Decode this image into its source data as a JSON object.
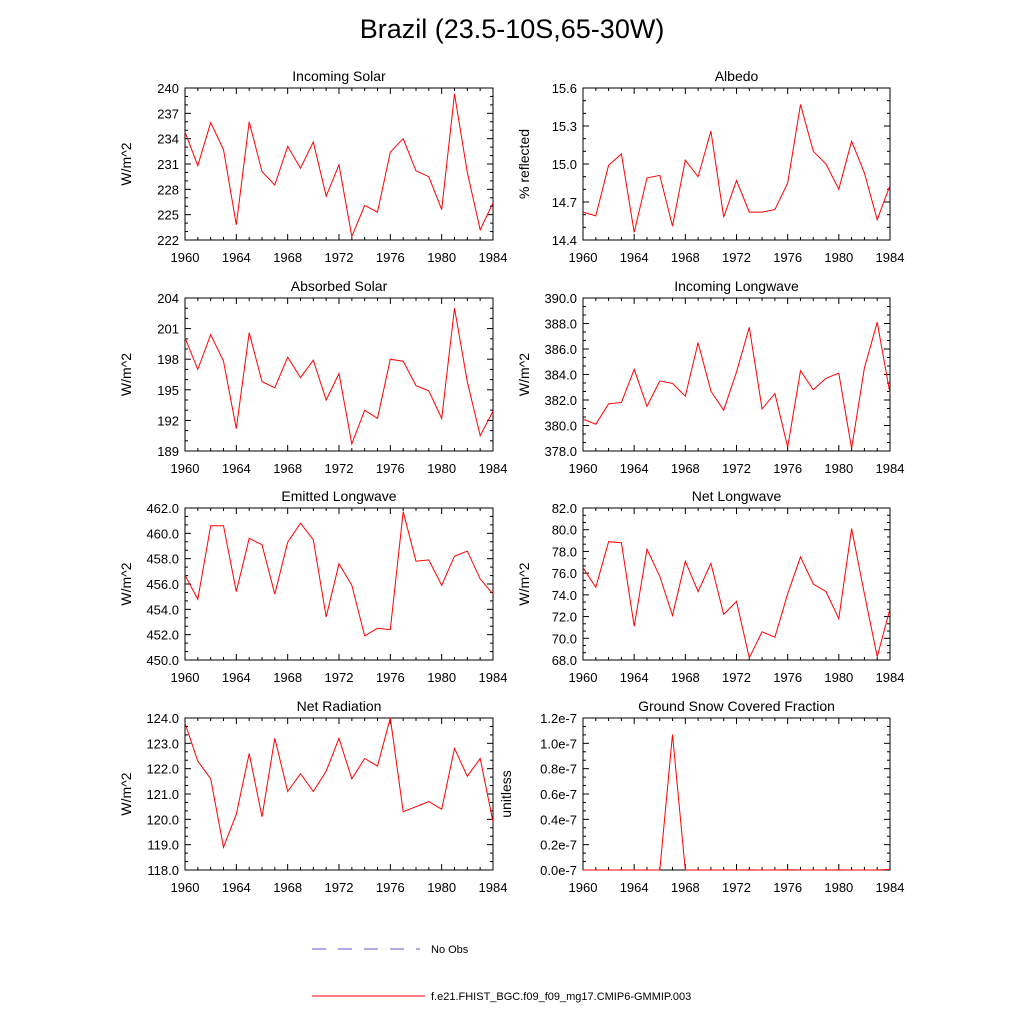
{
  "title": "Brazil (23.5-10S,65-30W)",
  "colors": {
    "model": "#ff0000",
    "obs": "#5a5acd",
    "axis": "#000000"
  },
  "legend": {
    "obs_label": "No Obs",
    "model_label": "f.e21.FHIST_BGC.f09_f09_mg17.CMIP6-GMMIP.003"
  },
  "chart_data": [
    {
      "type": "line",
      "title": "Incoming Solar",
      "ylabel": "W/m^2",
      "xlabel": "",
      "xlim": [
        1960,
        1984
      ],
      "ylim": [
        222,
        240
      ],
      "xticks": [
        "1960",
        "1964",
        "1968",
        "1972",
        "1976",
        "1980",
        "1984"
      ],
      "yticks": [
        "222",
        "225",
        "228",
        "231",
        "234",
        "237",
        "240"
      ],
      "x": [
        1960,
        1961,
        1962,
        1963,
        1964,
        1965,
        1966,
        1967,
        1968,
        1969,
        1970,
        1971,
        1972,
        1973,
        1974,
        1975,
        1976,
        1977,
        1978,
        1979,
        1980,
        1981,
        1982,
        1983,
        1984
      ],
      "values": [
        234.8,
        230.8,
        235.9,
        232.7,
        223.8,
        236.0,
        230.1,
        228.5,
        233.1,
        230.5,
        233.6,
        227.2,
        230.9,
        222.4,
        226.1,
        225.3,
        232.4,
        234.0,
        230.2,
        229.5,
        225.6,
        239.3,
        230.0,
        223.2,
        226.4
      ]
    },
    {
      "type": "line",
      "title": "Albedo",
      "ylabel": "% reflected",
      "xlabel": "",
      "xlim": [
        1960,
        1984
      ],
      "ylim": [
        14.4,
        15.6
      ],
      "xticks": [
        "1960",
        "1964",
        "1968",
        "1972",
        "1976",
        "1980",
        "1984"
      ],
      "yticks": [
        "14.4",
        "14.7",
        "15.0",
        "15.3",
        "15.6"
      ],
      "x": [
        1960,
        1961,
        1962,
        1963,
        1964,
        1965,
        1966,
        1967,
        1968,
        1969,
        1970,
        1971,
        1972,
        1973,
        1974,
        1975,
        1976,
        1977,
        1978,
        1979,
        1980,
        1981,
        1982,
        1983,
        1984
      ],
      "values": [
        14.62,
        14.59,
        14.99,
        15.08,
        14.46,
        14.89,
        14.91,
        14.51,
        15.03,
        14.9,
        15.26,
        14.58,
        14.87,
        14.62,
        14.62,
        14.64,
        14.85,
        15.47,
        15.1,
        15.0,
        14.8,
        15.18,
        14.93,
        14.56,
        14.83
      ]
    },
    {
      "type": "line",
      "title": "Absorbed Solar",
      "ylabel": "W/m^2",
      "xlabel": "",
      "xlim": [
        1960,
        1984
      ],
      "ylim": [
        189,
        204
      ],
      "xticks": [
        "1960",
        "1964",
        "1968",
        "1972",
        "1976",
        "1980",
        "1984"
      ],
      "yticks": [
        "189",
        "192",
        "195",
        "198",
        "201",
        "204"
      ],
      "x": [
        1960,
        1961,
        1962,
        1963,
        1964,
        1965,
        1966,
        1967,
        1968,
        1969,
        1970,
        1971,
        1972,
        1973,
        1974,
        1975,
        1976,
        1977,
        1978,
        1979,
        1980,
        1981,
        1982,
        1983,
        1984
      ],
      "values": [
        200.1,
        197.0,
        200.4,
        197.8,
        191.2,
        200.6,
        195.8,
        195.2,
        198.2,
        196.2,
        197.9,
        194.0,
        196.6,
        189.7,
        193.0,
        192.2,
        198.0,
        197.8,
        195.4,
        194.9,
        192.2,
        203.0,
        195.8,
        190.5,
        192.9
      ]
    },
    {
      "type": "line",
      "title": "Incoming Longwave",
      "ylabel": "W/m^2",
      "xlabel": "",
      "xlim": [
        1960,
        1984
      ],
      "ylim": [
        378.0,
        390.0
      ],
      "xticks": [
        "1960",
        "1964",
        "1968",
        "1972",
        "1976",
        "1980",
        "1984"
      ],
      "yticks": [
        "378.0",
        "380.0",
        "382.0",
        "384.0",
        "386.0",
        "388.0",
        "390.0"
      ],
      "x": [
        1960,
        1961,
        1962,
        1963,
        1964,
        1965,
        1966,
        1967,
        1968,
        1969,
        1970,
        1971,
        1972,
        1973,
        1974,
        1975,
        1976,
        1977,
        1978,
        1979,
        1980,
        1981,
        1982,
        1983,
        1984
      ],
      "values": [
        380.5,
        380.1,
        381.7,
        381.8,
        384.4,
        381.5,
        383.5,
        383.3,
        382.3,
        386.5,
        382.7,
        381.2,
        384.2,
        387.7,
        381.3,
        382.5,
        378.3,
        384.3,
        382.8,
        383.7,
        384.1,
        378.2,
        384.5,
        388.1,
        382.5
      ]
    },
    {
      "type": "line",
      "title": "Emitted Longwave",
      "ylabel": "W/m^2",
      "xlabel": "",
      "xlim": [
        1960,
        1984
      ],
      "ylim": [
        450.0,
        462.0
      ],
      "xticks": [
        "1960",
        "1964",
        "1968",
        "1972",
        "1976",
        "1980",
        "1984"
      ],
      "yticks": [
        "450.0",
        "452.0",
        "454.0",
        "456.0",
        "458.0",
        "460.0",
        "462.0"
      ],
      "x": [
        1960,
        1961,
        1962,
        1963,
        1964,
        1965,
        1966,
        1967,
        1968,
        1969,
        1970,
        1971,
        1972,
        1973,
        1974,
        1975,
        1976,
        1977,
        1978,
        1979,
        1980,
        1981,
        1982,
        1983,
        1984
      ],
      "values": [
        456.7,
        454.8,
        460.6,
        460.6,
        455.4,
        459.6,
        459.1,
        455.2,
        459.3,
        460.8,
        459.5,
        453.4,
        457.6,
        455.9,
        451.9,
        452.5,
        452.4,
        461.7,
        457.8,
        457.9,
        455.9,
        458.2,
        458.6,
        456.4,
        455.2
      ]
    },
    {
      "type": "line",
      "title": "Net Longwave",
      "ylabel": "W/m^2",
      "xlabel": "",
      "xlim": [
        1960,
        1984
      ],
      "ylim": [
        68.0,
        82.0
      ],
      "xticks": [
        "1960",
        "1964",
        "1968",
        "1972",
        "1976",
        "1980",
        "1984"
      ],
      "yticks": [
        "68.0",
        "70.0",
        "72.0",
        "74.0",
        "76.0",
        "78.0",
        "80.0",
        "82.0"
      ],
      "x": [
        1960,
        1961,
        1962,
        1963,
        1964,
        1965,
        1966,
        1967,
        1968,
        1969,
        1970,
        1971,
        1972,
        1973,
        1974,
        1975,
        1976,
        1977,
        1978,
        1979,
        1980,
        1981,
        1982,
        1983,
        1984
      ],
      "values": [
        76.5,
        74.7,
        78.9,
        78.8,
        71.1,
        78.2,
        75.7,
        72.1,
        77.1,
        74.3,
        76.9,
        72.2,
        73.4,
        68.2,
        70.6,
        70.1,
        74.1,
        77.5,
        75.0,
        74.3,
        71.8,
        80.1,
        74.1,
        68.3,
        72.7
      ]
    },
    {
      "type": "line",
      "title": "Net Radiation",
      "ylabel": "W/m^2",
      "xlabel": "",
      "xlim": [
        1960,
        1984
      ],
      "ylim": [
        118.0,
        124.0
      ],
      "xticks": [
        "1960",
        "1964",
        "1968",
        "1972",
        "1976",
        "1980",
        "1984"
      ],
      "yticks": [
        "118.0",
        "119.0",
        "120.0",
        "121.0",
        "122.0",
        "123.0",
        "124.0"
      ],
      "x": [
        1960,
        1961,
        1962,
        1963,
        1964,
        1965,
        1966,
        1967,
        1968,
        1969,
        1970,
        1971,
        1972,
        1973,
        1974,
        1975,
        1976,
        1977,
        1978,
        1979,
        1980,
        1981,
        1982,
        1983,
        1984
      ],
      "values": [
        123.8,
        122.3,
        121.6,
        118.9,
        120.2,
        122.6,
        120.1,
        123.2,
        121.1,
        121.8,
        121.1,
        121.9,
        123.2,
        121.6,
        122.4,
        122.1,
        124.0,
        120.3,
        120.5,
        120.7,
        120.4,
        122.8,
        121.7,
        122.4,
        119.9
      ]
    },
    {
      "type": "line",
      "title": "Ground Snow Covered Fraction",
      "ylabel": "unitless",
      "xlabel": "",
      "xlim": [
        1960,
        1984
      ],
      "ylim": [
        0.0,
        1.2e-07
      ],
      "xticks": [
        "1960",
        "1964",
        "1968",
        "1972",
        "1976",
        "1980",
        "1984"
      ],
      "yticks": [
        "0.0e-7",
        "0.2e-7",
        "0.4e-7",
        "0.6e-7",
        "0.8e-7",
        "1.0e-7",
        "1.2e-7"
      ],
      "x": [
        1960,
        1961,
        1962,
        1963,
        1964,
        1965,
        1966,
        1967,
        1968,
        1969,
        1970,
        1971,
        1972,
        1973,
        1974,
        1975,
        1976,
        1977,
        1978,
        1979,
        1980,
        1981,
        1982,
        1983,
        1984
      ],
      "values": [
        0,
        0,
        0,
        0,
        0,
        0,
        0,
        1.07e-07,
        0,
        0,
        0,
        0,
        0,
        1e-10,
        0,
        0,
        2e-10,
        0,
        0,
        0,
        1e-10,
        0,
        0,
        0,
        5e-10
      ]
    }
  ]
}
